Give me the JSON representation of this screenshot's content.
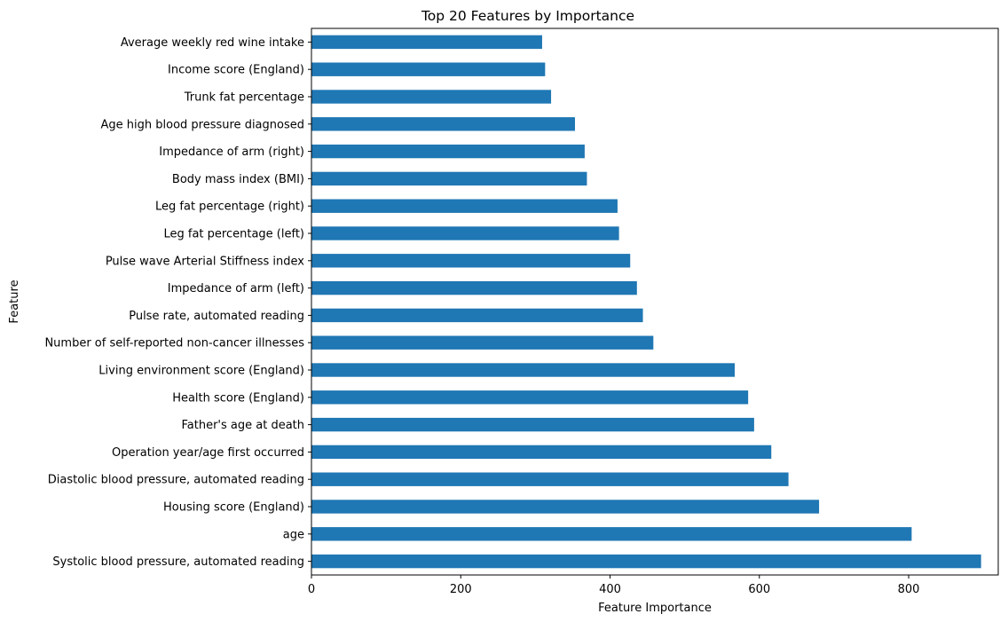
{
  "chart_data": {
    "type": "bar",
    "orientation": "horizontal",
    "title": "Top 20 Features by Importance",
    "xlabel": "Feature Importance",
    "ylabel": "Feature",
    "xlim": [
      0,
      920
    ],
    "xticks": [
      0,
      200,
      400,
      600,
      800
    ],
    "grid": false,
    "bar_color": "#1f77b4",
    "categories": [
      "Systolic blood pressure, automated reading",
      "age",
      "Housing score (England)",
      "Diastolic blood pressure, automated reading",
      "Operation year/age first occurred",
      "Father's age at death",
      "Health score (England)",
      "Living environment score (England)",
      "Number of self-reported non-cancer illnesses",
      "Pulse rate, automated reading",
      "Impedance of arm (left)",
      "Pulse wave Arterial Stiffness index",
      "Leg fat percentage (left)",
      "Leg fat percentage (right)",
      "Body mass index (BMI)",
      "Impedance of arm (right)",
      "Age high blood pressure diagnosed",
      "Trunk fat percentage",
      "Income score (England)",
      "Average weekly red wine intake"
    ],
    "values": [
      897,
      804,
      680,
      639,
      616,
      593,
      585,
      567,
      458,
      444,
      436,
      427,
      412,
      410,
      369,
      366,
      353,
      321,
      313,
      309
    ]
  }
}
